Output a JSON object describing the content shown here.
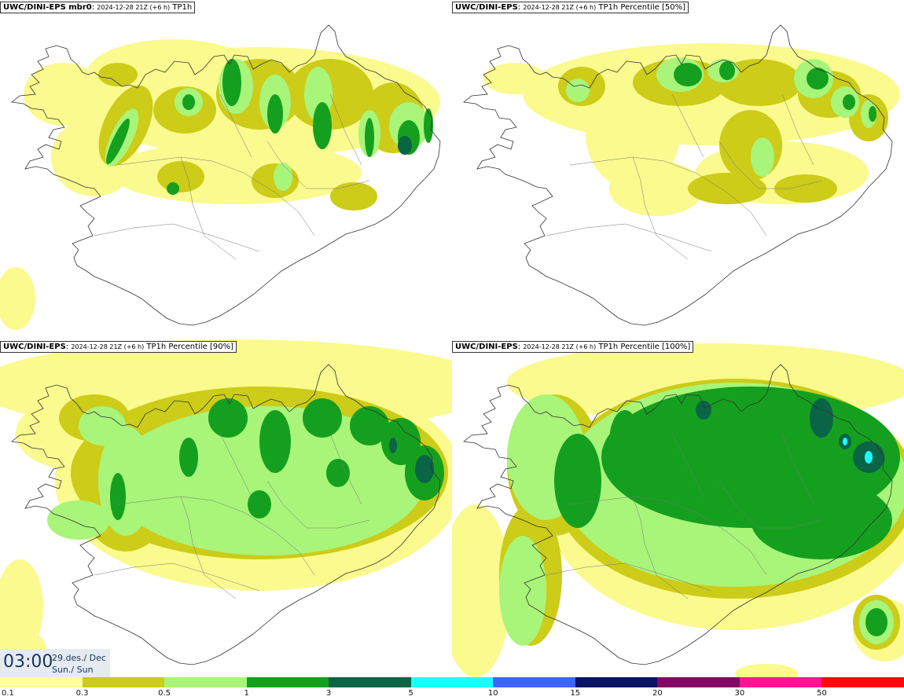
{
  "panels": [
    {
      "model": "UWC/DINI-EPS mbr0",
      "run": "2024-12-28 21Z (+6 h)",
      "field": "TP1h"
    },
    {
      "model": "UWC/DINI-EPS",
      "run": "2024-12-28 21Z (+6 h)",
      "field": "TP1h Percentile [50%]"
    },
    {
      "model": "UWC/DINI-EPS",
      "run": "2024-12-28 21Z (+6 h)",
      "field": "TP1h Percentile [90%]"
    },
    {
      "model": "UWC/DINI-EPS",
      "run": "2024-12-28 21Z (+6 h)",
      "field": "TP1h Percentile [100%]"
    }
  ],
  "valid_time": {
    "hour": "03:00",
    "date": "29.des./ Dec",
    "day": "Sun./ Sun"
  },
  "legend": {
    "ticks": [
      "0.1",
      "0.3",
      "0.5",
      "1",
      "3",
      "5",
      "10",
      "15",
      "20",
      "30",
      "50"
    ],
    "colors": [
      "#ffff9c",
      "#cccc19",
      "#a8f57a",
      "#14a01e",
      "#0a6446",
      "#19ffff",
      "#3c64ff",
      "#0a1464",
      "#820a64",
      "#ff1493",
      "#ff0a0a"
    ]
  },
  "map_colors": {
    "light_yellow": "#fafa8e",
    "olive": "#cccc19",
    "light_green": "#a8f57a",
    "green": "#14a01e",
    "dark_green": "#0a6446",
    "cyan": "#19ffff",
    "coast": "#333333"
  }
}
